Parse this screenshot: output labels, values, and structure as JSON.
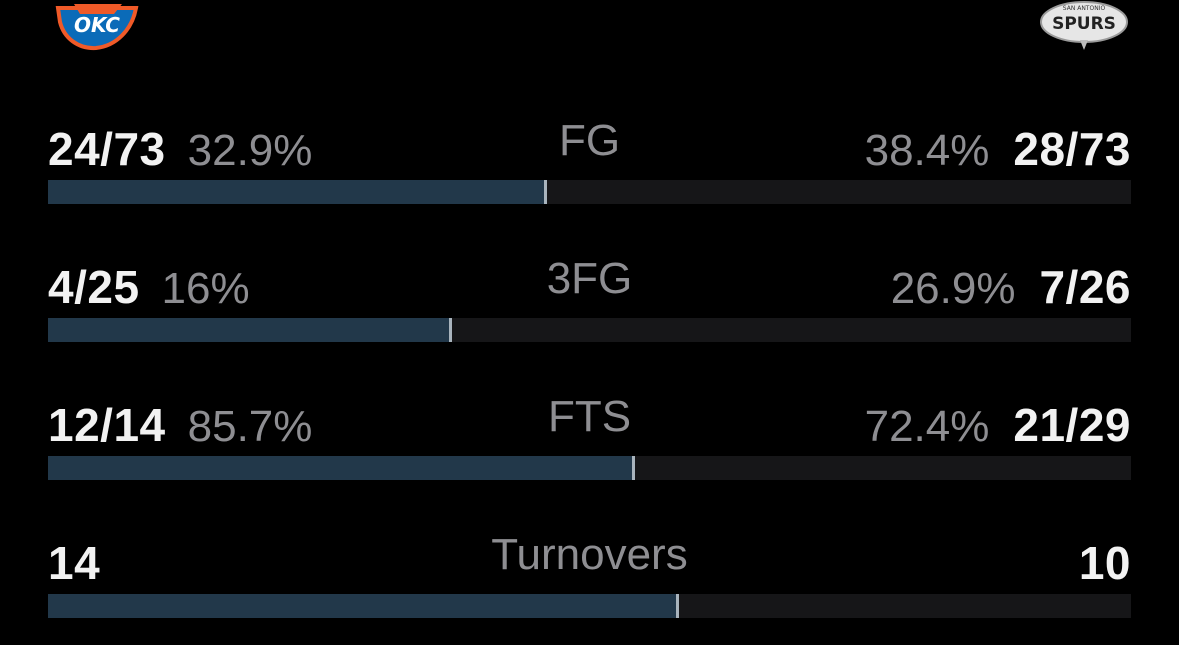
{
  "teams": {
    "left": {
      "logo_icon": "okc-thunder-logo-icon",
      "logo_text": "OKC",
      "color": "#22384a"
    },
    "right": {
      "logo_icon": "san-antonio-spurs-logo-icon",
      "logo_text": "SPURS",
      "logo_subtext": "SAN ANTONIO",
      "color": "#161618"
    }
  },
  "stats": [
    {
      "label": "FG",
      "left_value": "24/73",
      "left_pct": "32.9%",
      "right_pct": "38.4%",
      "right_value": "28/73",
      "left_share": 0.461
    },
    {
      "label": "3FG",
      "left_value": "4/25",
      "left_pct": "16%",
      "right_pct": "26.9%",
      "right_value": "7/26",
      "left_share": 0.373
    },
    {
      "label": "FTS",
      "left_value": "12/14",
      "left_pct": "85.7%",
      "right_pct": "72.4%",
      "right_value": "21/29",
      "left_share": 0.542
    },
    {
      "label": "Turnovers",
      "left_value": "14",
      "left_pct": "",
      "right_pct": "",
      "right_value": "10",
      "left_share": 0.583
    }
  ]
}
